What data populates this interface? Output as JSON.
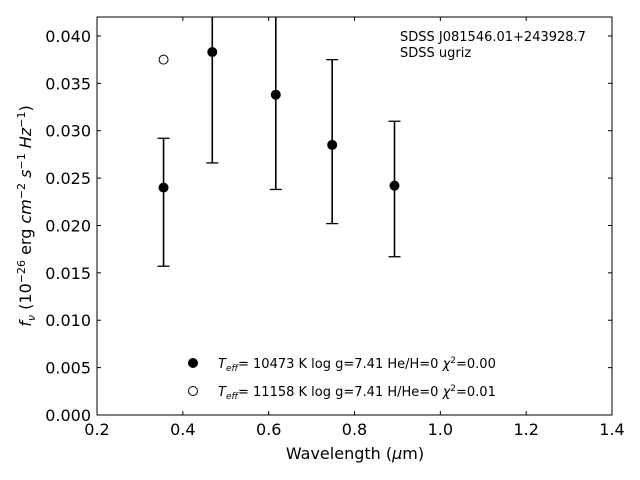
{
  "chart_data": {
    "type": "scatter",
    "xlabel": "Wavelength (μm)",
    "ylabel": "f_ν (10^−26 erg cm^−2 s^−1 Hz^−1)",
    "xlim": [
      0.2,
      1.4
    ],
    "ylim": [
      0.0,
      0.042
    ],
    "xticks": [
      "0.2",
      "0.4",
      "0.6",
      "0.8",
      "1.0",
      "1.2",
      "1.4"
    ],
    "yticks": [
      "0.000",
      "0.005",
      "0.010",
      "0.015",
      "0.020",
      "0.025",
      "0.030",
      "0.035",
      "0.040"
    ],
    "grid": false,
    "legend_position": "bottom-center",
    "annotations": [
      "SDSS J081546.01+243928.7",
      "SDSS ugriz"
    ],
    "series": [
      {
        "name": "T_eff= 10473 K  log g=7.41  He/H=0  χ²=0.00",
        "marker": "filled-circle",
        "color": "#000000",
        "points": [
          {
            "x": 0.3551,
            "y": 0.024,
            "yerr_low": 0.0157,
            "yerr_high": 0.0292
          },
          {
            "x": 0.4686,
            "y": 0.0383,
            "yerr_low": 0.0266,
            "yerr_high": 0.0422
          },
          {
            "x": 0.6166,
            "y": 0.0338,
            "yerr_low": 0.0238,
            "yerr_high": 0.0422
          },
          {
            "x": 0.748,
            "y": 0.0285,
            "yerr_low": 0.0202,
            "yerr_high": 0.0375
          },
          {
            "x": 0.8932,
            "y": 0.0242,
            "yerr_low": 0.0167,
            "yerr_high": 0.031
          }
        ]
      },
      {
        "name": "T_eff= 11158 K  log g=7.41  H/He=0  χ²=0.01",
        "marker": "open-circle",
        "color": "#000000",
        "points": [
          {
            "x": 0.3551,
            "y": 0.0375
          }
        ]
      }
    ]
  }
}
